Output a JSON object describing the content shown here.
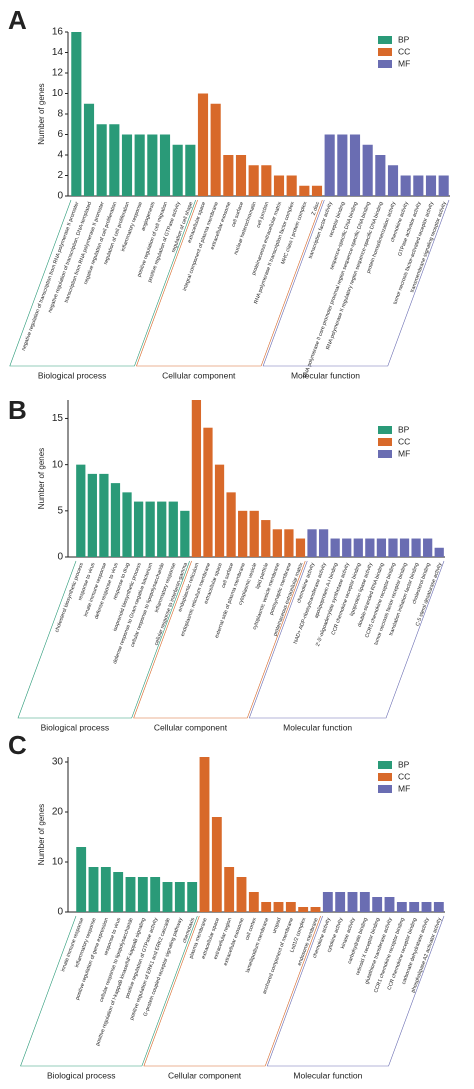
{
  "chart_data": [
    {
      "type": "bar",
      "panel": "A",
      "ylabel": "Number of genes",
      "ylim": [
        0,
        16
      ],
      "yticks": [
        0,
        2,
        4,
        6,
        8,
        10,
        12,
        14,
        16
      ],
      "groups": [
        {
          "name": "BP",
          "label": "Biological process",
          "color": "#2a9a78",
          "categories": [
            "negative regulation of transcription from RNA polymerase II promoter",
            "negative regulation of transcription, DNA-templated",
            "transcription from RNA polymerase II promoter",
            "negative regulation of cell proliferation",
            "regulation of cell proliferation",
            "inflammatory response",
            "angiogenesis",
            "positive regulation of cell migration",
            "positive regulation of GTPase activity",
            "regulation of cell shape"
          ],
          "values": [
            16,
            9,
            7,
            7,
            6,
            6,
            6,
            6,
            5,
            5
          ]
        },
        {
          "name": "CC",
          "label": "Cellular component",
          "color": "#d8692a",
          "categories": [
            "extracellular space",
            "integral component of plasma membrane",
            "extracellular exosome",
            "cell surface",
            "nuclear heterochromatin",
            "cell junction",
            "proteinaceous extracellular matrix",
            "RNA polymerase II transcription factor complex",
            "MHC class I protein complex",
            "Z disc"
          ],
          "values": [
            10,
            9,
            4,
            4,
            3,
            3,
            2,
            2,
            1,
            1
          ]
        },
        {
          "name": "MF",
          "label": "Molecular function",
          "color": "#6a6db2",
          "categories": [
            "transcription factor activity",
            "receptor binding",
            "sequence-specific DNA binding",
            "RNA polymerase II core promoter proximal region sequence-specific DNA binding",
            "RNA polymerase II regulatory region sequence-specific DNA binding",
            "protein homodimerization activity",
            "chemokine activity",
            "GTPase activator activity",
            "tumor necrosis factor-activated receptor activity",
            "transmembrane signaling receptor activity"
          ],
          "values": [
            6,
            6,
            6,
            5,
            4,
            3,
            2,
            2,
            2,
            2
          ]
        }
      ]
    },
    {
      "type": "bar",
      "panel": "B",
      "ylabel": "Number of genes",
      "ylim": [
        0,
        17
      ],
      "yticks": [
        0,
        5,
        10,
        15
      ],
      "groups": [
        {
          "name": "BP",
          "label": "Biological process",
          "color": "#2a9a78",
          "categories": [
            "cholesterol biosynthetic process",
            "response to virus",
            "innate immune response",
            "defense response to virus",
            "response to drug",
            "isoprenoid biosynthetic process",
            "defense response to Gram-negative bacterium",
            "cellular response to lipopolysaccharide",
            "inflammatory response",
            "cellular response to interferon-gamma"
          ],
          "values": [
            10,
            9,
            9,
            8,
            7,
            6,
            6,
            6,
            6,
            5
          ]
        },
        {
          "name": "CC",
          "label": "Cellular component",
          "color": "#d8692a",
          "categories": [
            "endoplasmic reticulum",
            "endoplasmic reticulum membrane",
            "extracellular space",
            "cell surface",
            "external side of plasma membrane",
            "cytoplasmic vesicle",
            "lipid particle",
            "cytoplasmic vesicle membrane",
            "postsynaptic membrane",
            "proteinaceous extracellular matrix"
          ],
          "values": [
            17,
            14,
            10,
            7,
            5,
            5,
            4,
            3,
            3,
            2
          ]
        },
        {
          "name": "MF",
          "label": "Molecular function",
          "color": "#6a6db2",
          "categories": [
            "chemokine activity",
            "NAD+ ADP-ribosyltransferase activity",
            "apolipoprotein A-I binding",
            "2'-5'-oligoadenylate synthetase activity",
            "CCR chemokine receptor binding",
            "lipoprotein lipase activity",
            "double-stranded RNA binding",
            "CCR5 chemokine receptor binding",
            "tumor necrosis factor receptor binding",
            "translation initiation factor binding",
            "cholesterol binding",
            "C-5 sterol desaturase activity"
          ],
          "values": [
            3,
            3,
            2,
            2,
            2,
            2,
            2,
            2,
            2,
            2,
            2,
            1
          ]
        }
      ]
    },
    {
      "type": "bar",
      "panel": "C",
      "ylabel": "Number of genes",
      "ylim": [
        0,
        31
      ],
      "yticks": [
        0,
        10,
        20,
        30
      ],
      "groups": [
        {
          "name": "BP",
          "label": "Biological process",
          "color": "#2a9a78",
          "categories": [
            "innate immune response",
            "inflammatory response",
            "positive regulation of gene expression",
            "response to virus",
            "cellular response to lipopolysaccharide",
            "positive regulation of I-kappaB kinase/NF-kappaB signaling",
            "positive regulation of GTPase activity",
            "positive regulation of ERK1 and ERK2 cascade",
            "G-protein coupled receptor signaling pathway",
            "chemotaxis"
          ],
          "values": [
            13,
            9,
            9,
            8,
            7,
            7,
            7,
            6,
            6,
            6
          ]
        },
        {
          "name": "CC",
          "label": "Cellular component",
          "color": "#d8692a",
          "categories": [
            "plasma membrane",
            "extracellular space",
            "extracellular region",
            "extracellular exosome",
            "cell cortex",
            "lamellipodium membrane",
            "uropod",
            "anchored component of membrane",
            "Lsd1/2 complex",
            "endosome membrane"
          ],
          "values": [
            31,
            19,
            9,
            7,
            4,
            2,
            2,
            2,
            1,
            1
          ]
        },
        {
          "name": "MF",
          "label": "Molecular function",
          "color": "#6a6db2",
          "categories": [
            "chemokine activity",
            "cytokine activity",
            "kinase activity",
            "carbohydrate binding",
            "retinoid X receptor binding",
            "glutathione transferase activity",
            "CCR1 chemokine receptor binding",
            "CCR chemokine receptor binding",
            "carbonate dehydratase activity",
            "phospholipase A2 activator activity"
          ],
          "values": [
            4,
            4,
            4,
            4,
            3,
            3,
            2,
            2,
            2,
            2
          ]
        }
      ]
    }
  ]
}
